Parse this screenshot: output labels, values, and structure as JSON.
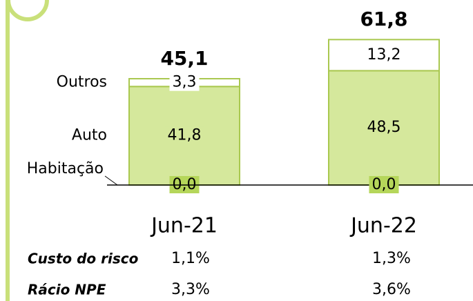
{
  "chart_data": {
    "type": "stacked_bar",
    "categories": [
      "Jun-21",
      "Jun-22"
    ],
    "series": [
      {
        "name": "Habitação",
        "color": "#b5d65a",
        "values": [
          0.0,
          0.0
        ],
        "value_labels": [
          "0,0",
          "0,0"
        ]
      },
      {
        "name": "Auto",
        "color": "#d5e89c",
        "values": [
          41.8,
          48.5
        ],
        "value_labels": [
          "41,8",
          "48,5"
        ]
      },
      {
        "name": "Outros",
        "color": "#ffffff",
        "values": [
          3.3,
          13.2
        ],
        "value_labels": [
          "3,3",
          "13,2"
        ]
      }
    ],
    "totals": [
      45.1,
      61.8
    ],
    "total_labels": [
      "45,1",
      "61,8"
    ],
    "ylim": [
      0,
      70
    ],
    "metrics": [
      {
        "name": "Custo do risco",
        "labels": [
          "1,1%",
          "1,3%"
        ]
      },
      {
        "name": "Rácio NPE",
        "labels": [
          "3,3%",
          "3,6%"
        ]
      }
    ]
  }
}
